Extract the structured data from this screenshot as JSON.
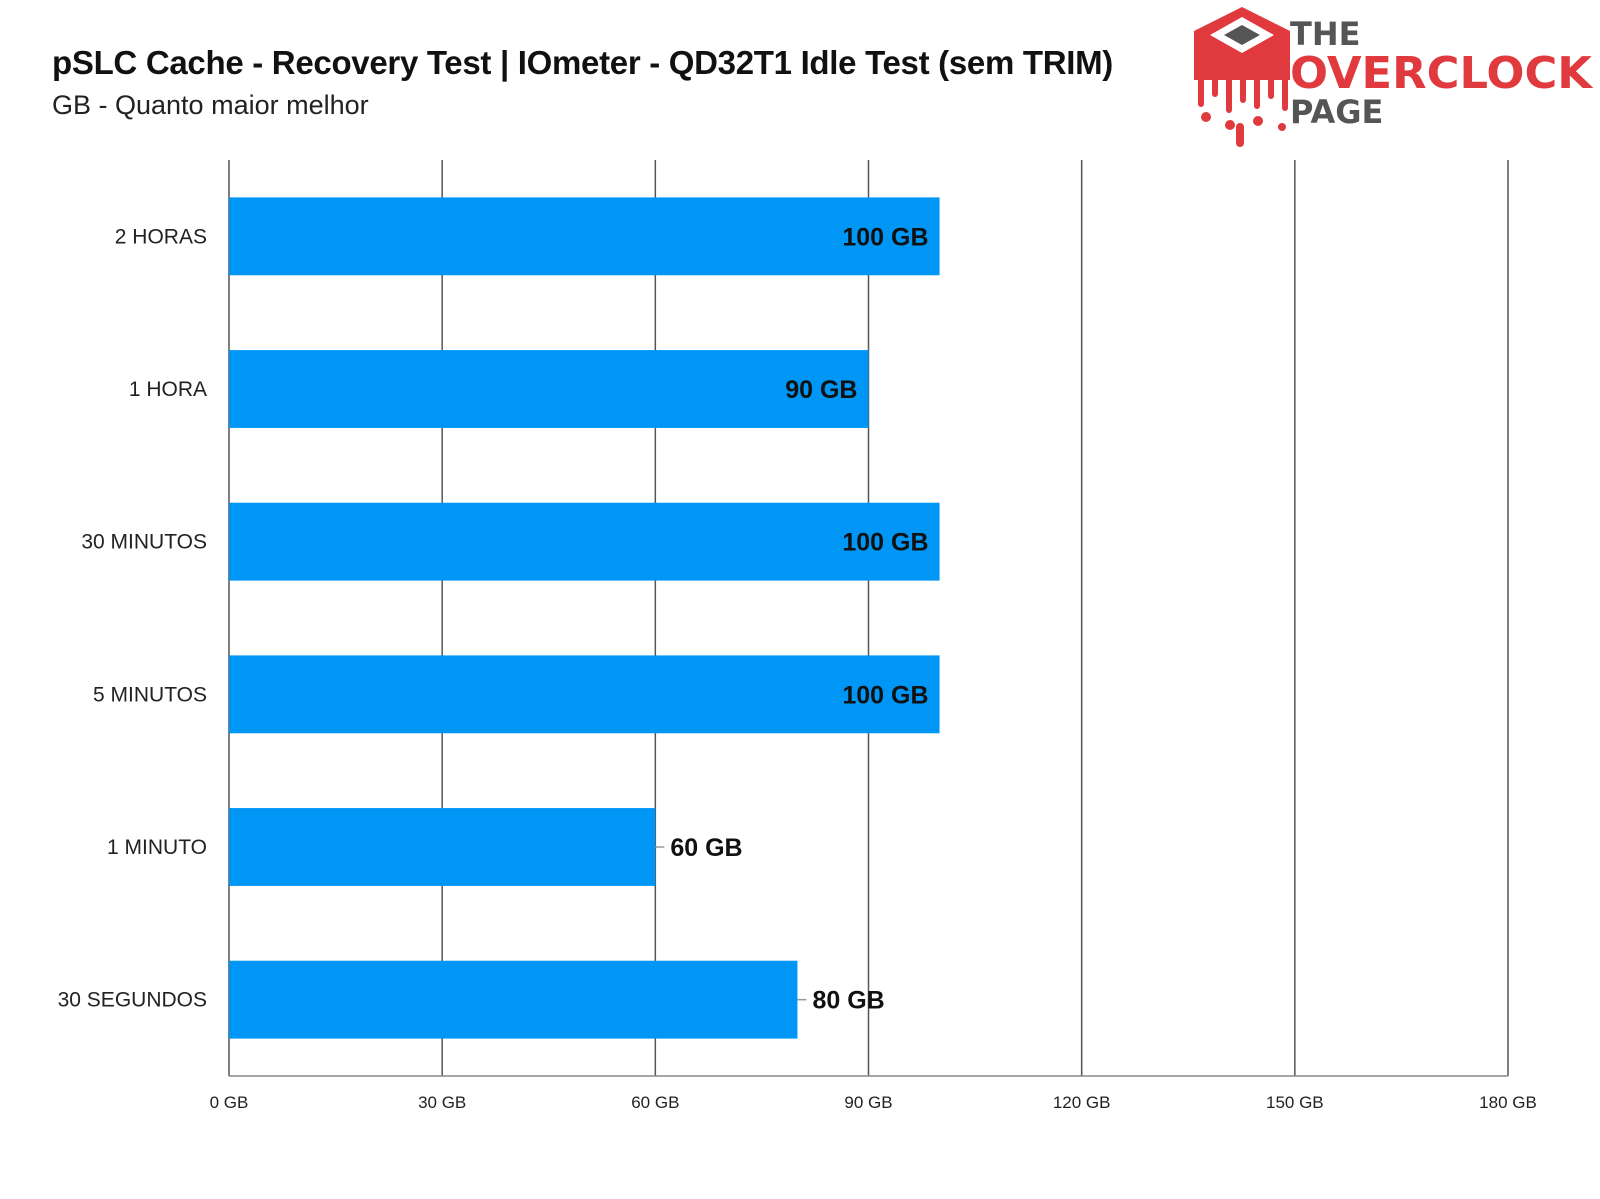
{
  "header": {
    "title": "pSLC Cache - Recovery Test | IOmeter - QD32T1 Idle Test (sem TRIM)",
    "subtitle": "GB - Quanto maior melhor"
  },
  "logo": {
    "line1": "THE",
    "line2": "OVERCLOCK",
    "line3": "PAGE",
    "brand_color": "#e03a3e",
    "icon": "melting-chip-icon"
  },
  "colors": {
    "bar": "#0096f5",
    "grid": "#555555"
  },
  "chart_data": {
    "type": "bar",
    "orientation": "horizontal",
    "categories": [
      "2 HORAS",
      "1 HORA",
      "30 MINUTOS",
      "5 MINUTOS",
      "1 MINUTO",
      "30 SEGUNDOS"
    ],
    "values": [
      100,
      90,
      100,
      100,
      60,
      80
    ],
    "data_labels": [
      "100 GB",
      "90 GB",
      "100 GB",
      "100 GB",
      "60 GB",
      "80 GB"
    ],
    "unit": "GB",
    "xlim": [
      0,
      180
    ],
    "xticks": [
      0,
      30,
      60,
      90,
      120,
      150,
      180
    ],
    "xtick_labels": [
      "0 GB",
      "30 GB",
      "60 GB",
      "90 GB",
      "120 GB",
      "150 GB",
      "180 GB"
    ],
    "grid": true,
    "legend": false
  }
}
